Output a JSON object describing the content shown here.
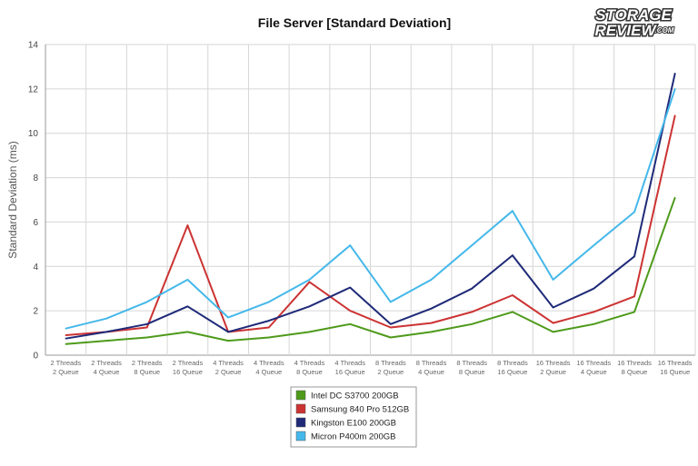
{
  "logo": {
    "line1": "STORAGE",
    "line2": "REVIEW",
    "suffix": ".COM"
  },
  "chart_data": {
    "type": "line",
    "title": "File Server [Standard Deviation]",
    "xlabel": "",
    "ylabel": "Standard Deviation (ms)",
    "ylim": [
      0,
      14
    ],
    "yticks": [
      0,
      2,
      4,
      6,
      8,
      10,
      12,
      14
    ],
    "grid": true,
    "legend_position": "bottom",
    "categories": [
      [
        "2 Threads",
        "2 Queue"
      ],
      [
        "2 Threads",
        "4 Queue"
      ],
      [
        "2 Threads",
        "8 Queue"
      ],
      [
        "2 Threads",
        "16 Queue"
      ],
      [
        "4 Threads",
        "2 Queue"
      ],
      [
        "4 Threads",
        "4 Queue"
      ],
      [
        "4 Threads",
        "8 Queue"
      ],
      [
        "4 Threads",
        "16 Queue"
      ],
      [
        "8 Threads",
        "2 Queue"
      ],
      [
        "8 Threads",
        "4 Queue"
      ],
      [
        "8 Threads",
        "8 Queue"
      ],
      [
        "8 Threads",
        "16 Queue"
      ],
      [
        "16 Threads",
        "2 Queue"
      ],
      [
        "16 Threads",
        "4 Queue"
      ],
      [
        "16 Threads",
        "8 Queue"
      ],
      [
        "16 Threads",
        "16 Queue"
      ]
    ],
    "series": [
      {
        "name": "Intel DC S3700 200GB",
        "color": "#4e9a1b",
        "values": [
          0.5,
          0.65,
          0.8,
          1.05,
          0.65,
          0.8,
          1.05,
          1.4,
          0.8,
          1.05,
          1.4,
          1.95,
          1.05,
          1.4,
          1.95,
          7.1
        ]
      },
      {
        "name": "Samsung 840 Pro 512GB",
        "color": "#cc3333",
        "values": [
          0.9,
          1.05,
          1.25,
          5.85,
          1.05,
          1.25,
          3.3,
          2.0,
          1.25,
          1.45,
          1.95,
          2.7,
          1.45,
          1.95,
          2.65,
          10.8
        ]
      },
      {
        "name": "Kingston E100 200GB",
        "color": "#1f2a78",
        "values": [
          0.75,
          1.05,
          1.4,
          2.2,
          1.05,
          1.55,
          2.2,
          3.05,
          1.4,
          2.1,
          3.0,
          4.5,
          2.15,
          3.0,
          4.45,
          12.7
        ]
      },
      {
        "name": "Micron P400m 200GB",
        "color": "#44b8ea",
        "values": [
          1.2,
          1.65,
          2.4,
          3.4,
          1.7,
          2.4,
          3.4,
          4.95,
          2.4,
          3.4,
          4.95,
          6.5,
          3.4,
          4.95,
          6.45,
          12.0
        ]
      }
    ]
  }
}
